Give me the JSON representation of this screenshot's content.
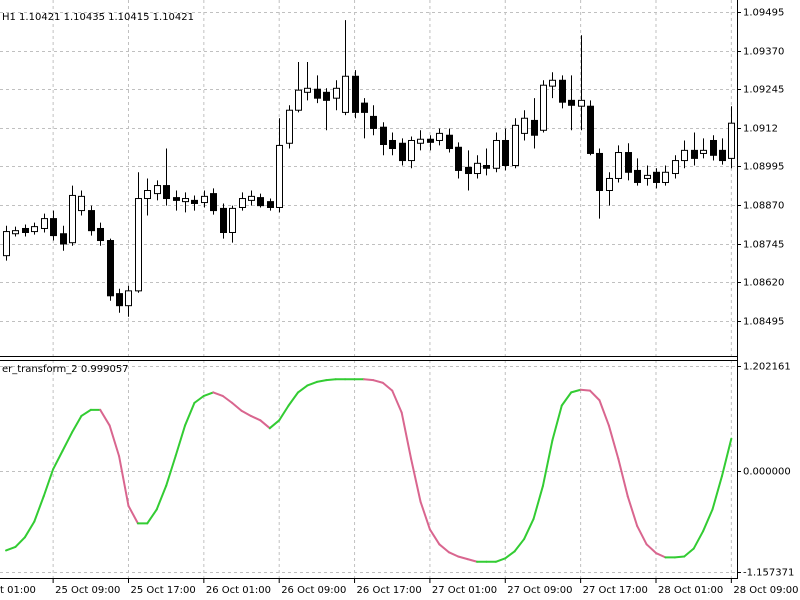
{
  "chart_data": [
    {
      "type": "candlestick",
      "title": "H1  1.10421 1.10435 1.10415 1.10421",
      "open": [
        1.08706,
        1.08777,
        1.08794,
        1.08784,
        1.08794,
        1.08826,
        1.08777,
        1.08748,
        1.08852,
        1.08852,
        1.08794,
        1.08755,
        1.08583,
        1.08544,
        1.08592,
        1.08891,
        1.08907,
        1.08933,
        1.08894,
        1.08881,
        1.08885,
        1.08878,
        1.08907,
        1.08859,
        1.08781,
        1.08862,
        1.08885,
        1.08894,
        1.08881,
        1.08862,
        1.0907,
        1.09177,
        1.09235,
        1.09245,
        1.09235,
        1.09216,
        1.0917,
        1.09287,
        1.092,
        1.09157,
        1.09122,
        1.09079,
        1.0907,
        1.09014,
        1.0907,
        1.09083,
        1.09079,
        1.09096,
        1.09057,
        1.08992,
        1.08972,
        1.08998,
        1.08989,
        1.09079,
        1.08998,
        1.09102,
        1.09144,
        1.09112,
        1.09255,
        1.09274,
        1.09209,
        1.0919,
        1.0919,
        1.09037,
        1.08917,
        1.08956,
        1.0904,
        1.08982,
        1.08956,
        1.08976,
        1.08943,
        1.08972,
        1.09014,
        1.09047,
        1.09037,
        1.09079,
        1.09047,
        1.09021
      ],
      "high": [
        1.08803,
        1.088,
        1.08807,
        1.08813,
        1.08842,
        1.08852,
        1.08803,
        1.08933,
        1.08917,
        1.08868,
        1.08813,
        1.08761,
        1.08599,
        1.08609,
        1.08976,
        1.08956,
        1.0895,
        1.09053,
        1.08917,
        1.08911,
        1.08901,
        1.08917,
        1.08924,
        1.08875,
        1.08868,
        1.08911,
        1.08917,
        1.08907,
        1.08891,
        1.09151,
        1.09193,
        1.09333,
        1.09333,
        1.0929,
        1.09248,
        1.09274,
        1.09469,
        1.09307,
        1.09216,
        1.09193,
        1.09138,
        1.09105,
        1.09086,
        1.09092,
        1.09112,
        1.09096,
        1.09118,
        1.09118,
        1.09073,
        1.09047,
        1.09031,
        1.09053,
        1.09105,
        1.09118,
        1.09151,
        1.09177,
        1.09216,
        1.09274,
        1.093,
        1.0929,
        1.0929,
        1.0942,
        1.09209,
        1.09053,
        1.08976,
        1.09063,
        1.0907,
        1.09021,
        1.08998,
        1.08989,
        1.08998,
        1.09031,
        1.09079,
        1.09105,
        1.09086,
        1.09096,
        1.09086,
        1.0919
      ],
      "low": [
        1.0869,
        1.08768,
        1.08768,
        1.08774,
        1.08781,
        1.08755,
        1.08722,
        1.08738,
        1.08836,
        1.08771,
        1.08738,
        1.0856,
        1.08521,
        1.08508,
        1.08586,
        1.08836,
        1.08885,
        1.08868,
        1.08852,
        1.08846,
        1.08852,
        1.08862,
        1.08839,
        1.08761,
        1.08748,
        1.08852,
        1.08868,
        1.08862,
        1.08852,
        1.08846,
        1.09053,
        1.0917,
        1.09209,
        1.092,
        1.09112,
        1.09177,
        1.09161,
        1.09151,
        1.09086,
        1.09096,
        1.09031,
        1.09031,
        1.08998,
        1.08989,
        1.09047,
        1.09047,
        1.09063,
        1.0904,
        1.08956,
        1.08917,
        1.08956,
        1.08966,
        1.08976,
        1.08982,
        1.08989,
        1.09079,
        1.09053,
        1.09105,
        1.09216,
        1.09183,
        1.09112,
        1.09112,
        1.09031,
        1.08826,
        1.08868,
        1.08943,
        1.0895,
        1.08933,
        1.08933,
        1.08924,
        1.08933,
        1.08956,
        1.08989,
        1.08998,
        1.09021,
        1.09014,
        1.09001,
        1.08989
      ],
      "close": [
        1.08784,
        1.08787,
        1.08781,
        1.088,
        1.08826,
        1.08771,
        1.08744,
        1.08901,
        1.08898,
        1.08787,
        1.08755,
        1.08576,
        1.08544,
        1.08592,
        1.08891,
        1.08917,
        1.08933,
        1.08891,
        1.08885,
        1.08891,
        1.08875,
        1.08898,
        1.08852,
        1.08781,
        1.08859,
        1.08891,
        1.08898,
        1.08868,
        1.08862,
        1.09063,
        1.09177,
        1.09242,
        1.09248,
        1.09216,
        1.09209,
        1.09248,
        1.09287,
        1.0917,
        1.0917,
        1.09118,
        1.09066,
        1.09053,
        1.09014,
        1.09079,
        1.09083,
        1.09073,
        1.09102,
        1.09053,
        1.08982,
        1.08972,
        1.09005,
        1.08989,
        1.09079,
        1.08998,
        1.09128,
        1.09151,
        1.09096,
        1.09258,
        1.09274,
        1.09203,
        1.09193,
        1.09209,
        1.09037,
        1.08917,
        1.08956,
        1.0904,
        1.08976,
        1.08943,
        1.08966,
        1.08943,
        1.08976,
        1.09014,
        1.09047,
        1.09021,
        1.09047,
        1.09031,
        1.09014,
        1.09135
      ],
      "up_color": "#ffffff",
      "down_color": "#000000",
      "xlim": [
        -0.64,
        77.6
      ],
      "xticks": [
        {
          "value": -3,
          "label": "t 01:00"
        },
        {
          "value": 5,
          "label": "25 Oct 09:00"
        },
        {
          "value": 13,
          "label": "25 Oct 17:00"
        },
        {
          "value": 21,
          "label": "26 Oct 01:00"
        },
        {
          "value": 29,
          "label": "26 Oct 09:00"
        },
        {
          "value": 37,
          "label": "26 Oct 17:00"
        },
        {
          "value": 45,
          "label": "27 Oct 01:00"
        },
        {
          "value": 53,
          "label": "27 Oct 09:00"
        },
        {
          "value": 61,
          "label": "27 Oct 17:00"
        },
        {
          "value": 69,
          "label": "28 Oct 01:00"
        },
        {
          "value": 77,
          "label": "28 Oct 09:00"
        }
      ],
      "ylim": [
        1.08381,
        1.09534
      ],
      "yticks": [
        1.09495,
        {
          "value": 1.0937,
          "label": "1.09370"
        },
        1.09245,
        1.0912,
        1.08995,
        {
          "value": 1.0887,
          "label": "1.08870"
        },
        1.08745,
        {
          "value": 1.0862,
          "label": "1.08620"
        },
        1.08495
      ],
      "grid": true
    },
    {
      "type": "line",
      "title": "er_transform_2 0.999057",
      "values": [
        -0.91,
        -0.87,
        -0.76,
        -0.58,
        -0.29,
        0.02,
        0.23,
        0.44,
        0.63,
        0.7,
        0.7,
        0.52,
        0.17,
        -0.4,
        -0.6,
        -0.6,
        -0.44,
        -0.17,
        0.17,
        0.52,
        0.78,
        0.86,
        0.9,
        0.86,
        0.78,
        0.69,
        0.63,
        0.58,
        0.49,
        0.58,
        0.75,
        0.9,
        0.98,
        1.02,
        1.04,
        1.05,
        1.05,
        1.05,
        1.05,
        1.04,
        1.01,
        0.92,
        0.67,
        0.14,
        -0.35,
        -0.67,
        -0.84,
        -0.93,
        -0.98,
        -1.01,
        -1.04,
        -1.04,
        -1.04,
        -1.0,
        -0.92,
        -0.78,
        -0.55,
        -0.17,
        0.35,
        0.75,
        0.9,
        0.93,
        0.92,
        0.81,
        0.52,
        0.14,
        -0.29,
        -0.63,
        -0.84,
        -0.94,
        -0.99,
        -0.99,
        -0.98,
        -0.89,
        -0.69,
        -0.44,
        -0.06,
        0.37
      ],
      "color": "#33cc33",
      "falling_color": "#d9668f",
      "ylim": [
        -1.226,
        1.271
      ],
      "yticks": [
        1.202161,
        {
          "value": 0,
          "label": "0.000000"
        },
        -1.157371
      ],
      "grid": true
    }
  ]
}
